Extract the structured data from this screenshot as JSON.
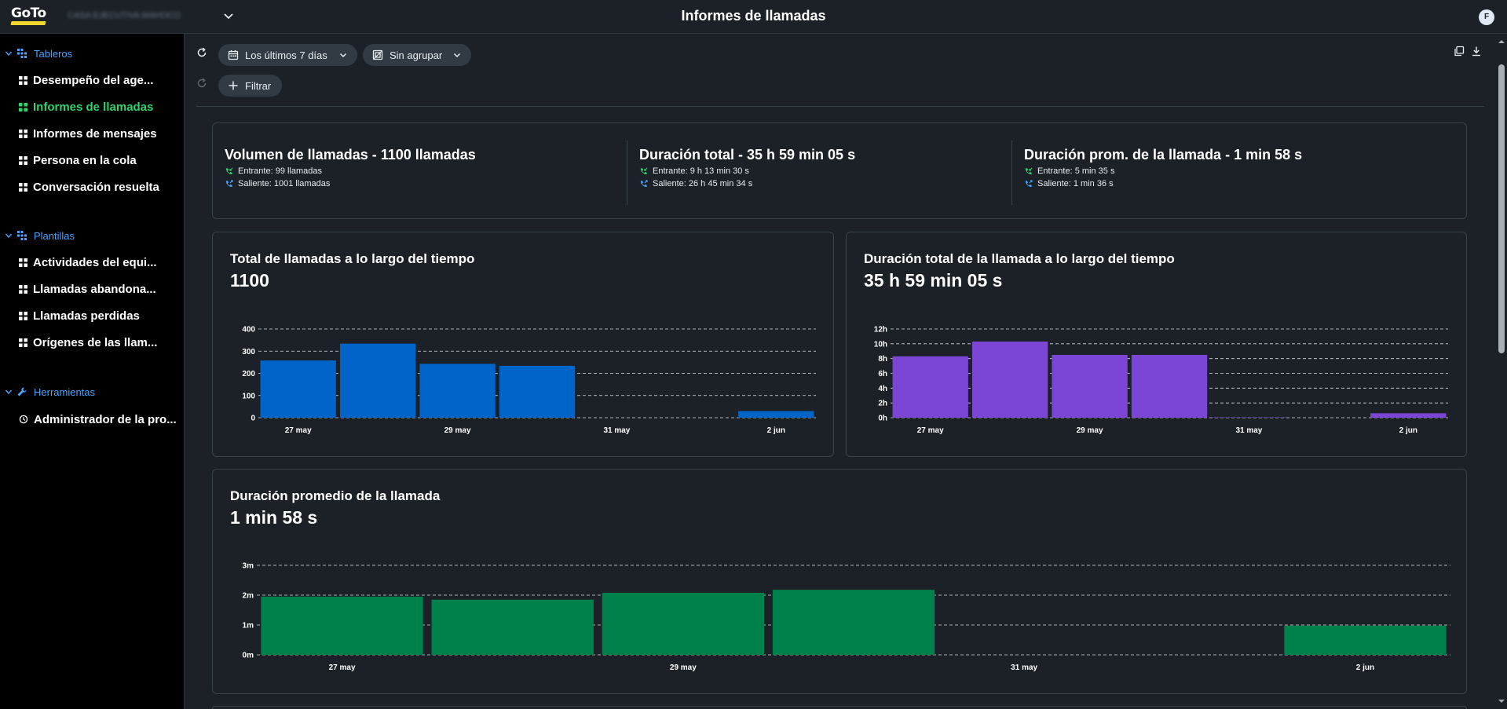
{
  "header": {
    "logo_text": "GoTo",
    "account_name": "CASA EJECUTIVA MAHOCO",
    "title": "Informes de llamadas",
    "avatar_initial": "F"
  },
  "sidebar": {
    "sections": [
      {
        "label": "Tableros",
        "items": [
          {
            "label": "Desempeño del age..."
          },
          {
            "label": "Informes de llamadas",
            "active": true
          },
          {
            "label": "Informes de mensajes"
          },
          {
            "label": "Persona en la cola"
          },
          {
            "label": "Conversación resuelta"
          }
        ]
      },
      {
        "label": "Plantillas",
        "items": [
          {
            "label": "Actividades del equi..."
          },
          {
            "label": "Llamadas abandona..."
          },
          {
            "label": "Llamadas perdidas"
          },
          {
            "label": "Orígenes de las llam..."
          }
        ]
      },
      {
        "label": "Herramientas",
        "items": [
          {
            "label": "Administrador de la pro..."
          }
        ]
      }
    ]
  },
  "toolbar": {
    "date_range": "Los últimos 7 días",
    "grouping": "Sin agrupar",
    "filter_label": "Filtrar"
  },
  "summary": [
    {
      "title": "Volumen de llamadas - 1100 llamadas",
      "inbound": "Entrante: 99 llamadas",
      "outbound": "Saliente: 1001 llamadas"
    },
    {
      "title": "Duración total - 35 h 59 min 05 s",
      "inbound": "Entrante: 9 h 13 min 30 s",
      "outbound": "Saliente: 26 h 45 min 34 s"
    },
    {
      "title": "Duración prom. de la llamada - 1 min 58 s",
      "inbound": "Entrante: 5 min 35 s",
      "outbound": "Saliente: 1 min 36 s"
    }
  ],
  "colors": {
    "calls": "#0064c8",
    "duration": "#7b45d6",
    "average": "#00804a",
    "inbound_icon": "#2fd46e",
    "outbound_icon": "#4aa3ff"
  },
  "chart_data": [
    {
      "type": "bar",
      "title": "Total de llamadas a lo largo del tiempo",
      "value": "1100",
      "categories": [
        "27 may",
        "28 may",
        "29 may",
        "30 may",
        "31 may",
        "1 jun",
        "2 jun"
      ],
      "x_tick_labels": [
        "27 may",
        "29 may",
        "31 may",
        "2 jun"
      ],
      "values": [
        258,
        334,
        243,
        234,
        0,
        0,
        30
      ],
      "ylim": [
        0,
        400
      ],
      "y_ticks": [
        0,
        100,
        200,
        300,
        400
      ],
      "y_tick_labels": [
        "0",
        "100",
        "200",
        "300",
        "400"
      ],
      "grid": true
    },
    {
      "type": "bar",
      "title": "Duración total de la llamada a lo largo del tiempo",
      "value": "35 h 59 min 05 s",
      "categories": [
        "27 may",
        "28 may",
        "29 may",
        "30 may",
        "31 may",
        "1 jun",
        "2 jun"
      ],
      "x_tick_labels": [
        "27 may",
        "29 may",
        "31 may",
        "2 jun"
      ],
      "values": [
        8.3,
        10.3,
        8.5,
        8.5,
        0.05,
        0,
        0.6
      ],
      "ylim": [
        0,
        12
      ],
      "y_ticks": [
        0,
        2,
        4,
        6,
        8,
        10,
        12
      ],
      "y_tick_labels": [
        "0h",
        "2h",
        "4h",
        "6h",
        "8h",
        "10h",
        "12h"
      ],
      "grid": true
    },
    {
      "type": "bar",
      "title": "Duración promedio de la llamada",
      "value": "1 min 58 s",
      "categories": [
        "27 may",
        "28 may",
        "29 may",
        "30 may",
        "31 may",
        "1 jun",
        "2 jun"
      ],
      "x_tick_labels": [
        "27 may",
        "29 may",
        "31 may",
        "2 jun"
      ],
      "values": [
        1.95,
        1.85,
        2.08,
        2.18,
        0,
        0,
        0.98
      ],
      "ylim": [
        0,
        3
      ],
      "y_ticks": [
        0,
        1,
        2,
        3
      ],
      "y_tick_labels": [
        "0m",
        "1m",
        "2m",
        "3m"
      ],
      "grid": true
    }
  ]
}
